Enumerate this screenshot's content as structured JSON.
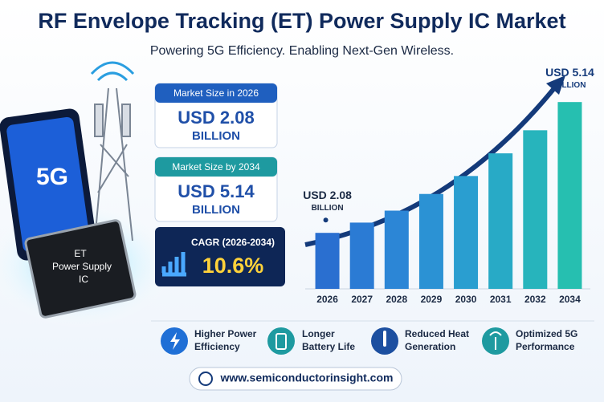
{
  "header": {
    "title": "RF Envelope Tracking (ET) Power Supply IC Market",
    "subtitle": "Powering 5G Efficiency. Enabling Next-Gen Wireless."
  },
  "stats": [
    {
      "label": "Market Size in 2026",
      "value": "USD 2.08",
      "unit": "BILLION"
    },
    {
      "label": "Market Size by 2034",
      "value": "USD 5.14",
      "unit": "BILLION"
    },
    {
      "label": "CAGR (2026-2034)",
      "value": "10.6%"
    }
  ],
  "illustration": {
    "phone_label": "5G",
    "chip_label": [
      "ET",
      "Power Supply",
      "IC"
    ]
  },
  "chart_data": {
    "type": "bar",
    "categories": [
      "2026",
      "2027",
      "2028",
      "2029",
      "2030",
      "2031",
      "2032",
      "2034"
    ],
    "values": [
      2.08,
      2.32,
      2.6,
      2.99,
      3.41,
      3.94,
      4.48,
      5.14
    ],
    "value_labels": [
      [
        "USD 2.08",
        "BILLION"
      ],
      null,
      null,
      null,
      null,
      null,
      null,
      [
        "USD 5.14",
        "BILLION"
      ]
    ],
    "colors": [
      "#2a6fd0",
      "#2b7bd4",
      "#2c86d6",
      "#2b92d4",
      "#2a9ed0",
      "#28aac6",
      "#27b4bc",
      "#26bfb0"
    ],
    "ylim": [
      0.77,
      5.5
    ]
  },
  "features": [
    {
      "label": [
        "Higher Power",
        "Efficiency"
      ]
    },
    {
      "label": [
        "Longer",
        "Battery Life"
      ]
    },
    {
      "label": [
        "Reduced Heat",
        "Generation"
      ]
    },
    {
      "label": [
        "Optimized 5G",
        "Performance"
      ]
    }
  ],
  "footer": {
    "website": "www.semiconductorinsight.com"
  }
}
